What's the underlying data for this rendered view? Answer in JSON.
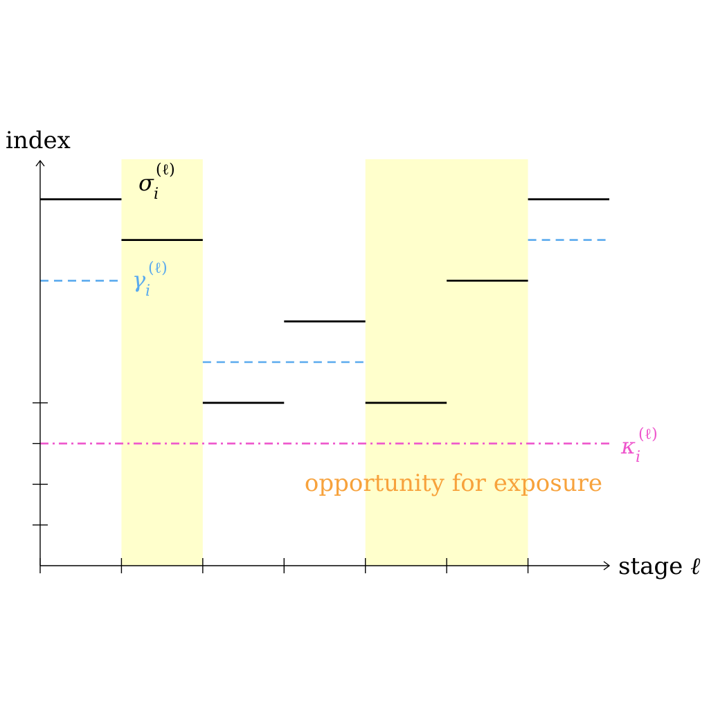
{
  "axes": {
    "y_label": "index",
    "x_label_text": "stage ",
    "x_label_symbol": "ℓ"
  },
  "labels": {
    "sigma": {
      "base": "σ",
      "sub": "i",
      "sup": "(ℓ)"
    },
    "gamma": {
      "base": "γ",
      "sub": "i",
      "sup": "(ℓ)"
    },
    "kappa": {
      "base": "κ",
      "sub": "i",
      "sup": "(ℓ)"
    },
    "highlight_caption": "opportunity for exposure"
  },
  "colors": {
    "sigma": "#000000",
    "gamma": "#5aaaee",
    "kappa": "#ee55cc",
    "highlight_fill": "#ffffcc",
    "caption": "#f7a23c"
  },
  "chart_data": {
    "type": "step",
    "x_ticks": [
      0,
      1,
      2,
      3,
      4,
      5,
      6
    ],
    "y_ticks": [
      1,
      2,
      3,
      4
    ],
    "xlim": [
      0,
      7
    ],
    "ylim": [
      0,
      9
    ],
    "highlighted_stages": [
      [
        1,
        2
      ],
      [
        4,
        6
      ]
    ],
    "series": [
      {
        "key": "sigma",
        "style": "solid",
        "segments": [
          {
            "x0": 0,
            "x1": 1,
            "y": 9
          },
          {
            "x0": 1,
            "x1": 2,
            "y": 8
          },
          {
            "x0": 2,
            "x1": 3,
            "y": 4
          },
          {
            "x0": 3,
            "x1": 4,
            "y": 6
          },
          {
            "x0": 4,
            "x1": 5,
            "y": 4
          },
          {
            "x0": 5,
            "x1": 6,
            "y": 7
          },
          {
            "x0": 6,
            "x1": 7,
            "y": 9
          }
        ]
      },
      {
        "key": "gamma",
        "style": "dashed",
        "segments": [
          {
            "x0": 0,
            "x1": 1,
            "y": 7
          },
          {
            "x0": 2,
            "x1": 4,
            "y": 5
          },
          {
            "x0": 6,
            "x1": 7,
            "y": 8
          }
        ]
      },
      {
        "key": "kappa",
        "style": "dashdot",
        "segments": [
          {
            "x0": 0,
            "x1": 7,
            "y": 3
          }
        ]
      }
    ]
  }
}
